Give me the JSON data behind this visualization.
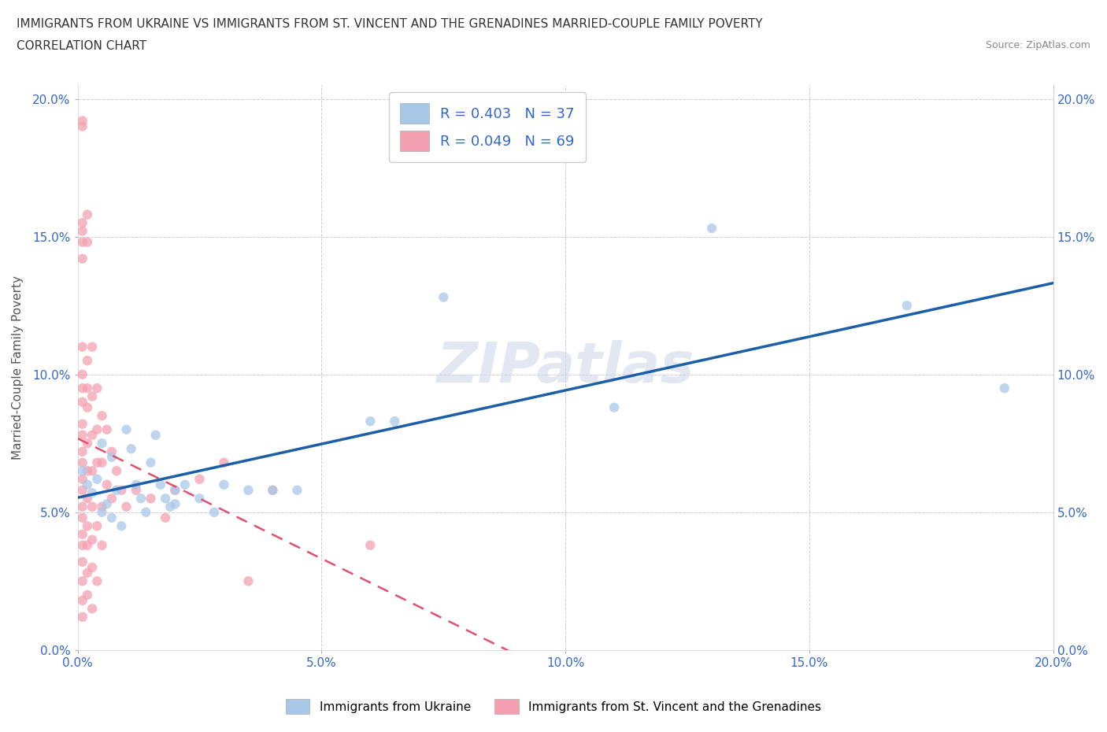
{
  "title_line1": "IMMIGRANTS FROM UKRAINE VS IMMIGRANTS FROM ST. VINCENT AND THE GRENADINES MARRIED-COUPLE FAMILY POVERTY",
  "title_line2": "CORRELATION CHART",
  "source_text": "Source: ZipAtlas.com",
  "ylabel": "Married-Couple Family Poverty",
  "xmin": 0.0,
  "xmax": 0.2,
  "ymin": 0.0,
  "ymax": 0.205,
  "ukraine_R": 0.403,
  "ukraine_N": 37,
  "svg_R": 0.049,
  "svg_N": 69,
  "ukraine_color": "#a8c8e8",
  "svg_color": "#f4a0b0",
  "ukraine_scatter": [
    [
      0.001,
      0.065
    ],
    [
      0.002,
      0.06
    ],
    [
      0.003,
      0.057
    ],
    [
      0.004,
      0.062
    ],
    [
      0.005,
      0.05
    ],
    [
      0.005,
      0.075
    ],
    [
      0.006,
      0.053
    ],
    [
      0.007,
      0.048
    ],
    [
      0.007,
      0.07
    ],
    [
      0.008,
      0.058
    ],
    [
      0.009,
      0.045
    ],
    [
      0.01,
      0.08
    ],
    [
      0.011,
      0.073
    ],
    [
      0.012,
      0.06
    ],
    [
      0.013,
      0.055
    ],
    [
      0.014,
      0.05
    ],
    [
      0.015,
      0.068
    ],
    [
      0.016,
      0.078
    ],
    [
      0.017,
      0.06
    ],
    [
      0.018,
      0.055
    ],
    [
      0.019,
      0.052
    ],
    [
      0.02,
      0.058
    ],
    [
      0.02,
      0.053
    ],
    [
      0.022,
      0.06
    ],
    [
      0.025,
      0.055
    ],
    [
      0.028,
      0.05
    ],
    [
      0.03,
      0.06
    ],
    [
      0.035,
      0.058
    ],
    [
      0.04,
      0.058
    ],
    [
      0.045,
      0.058
    ],
    [
      0.06,
      0.083
    ],
    [
      0.065,
      0.083
    ],
    [
      0.075,
      0.128
    ],
    [
      0.11,
      0.088
    ],
    [
      0.13,
      0.153
    ],
    [
      0.17,
      0.125
    ],
    [
      0.19,
      0.095
    ]
  ],
  "svg_scatter": [
    [
      0.001,
      0.192
    ],
    [
      0.001,
      0.19
    ],
    [
      0.001,
      0.155
    ],
    [
      0.001,
      0.148
    ],
    [
      0.001,
      0.152
    ],
    [
      0.001,
      0.142
    ],
    [
      0.001,
      0.11
    ],
    [
      0.001,
      0.1
    ],
    [
      0.001,
      0.095
    ],
    [
      0.001,
      0.09
    ],
    [
      0.001,
      0.082
    ],
    [
      0.001,
      0.078
    ],
    [
      0.001,
      0.072
    ],
    [
      0.001,
      0.068
    ],
    [
      0.001,
      0.062
    ],
    [
      0.001,
      0.058
    ],
    [
      0.001,
      0.052
    ],
    [
      0.001,
      0.048
    ],
    [
      0.001,
      0.042
    ],
    [
      0.001,
      0.038
    ],
    [
      0.001,
      0.032
    ],
    [
      0.001,
      0.025
    ],
    [
      0.001,
      0.018
    ],
    [
      0.001,
      0.012
    ],
    [
      0.002,
      0.158
    ],
    [
      0.002,
      0.148
    ],
    [
      0.002,
      0.105
    ],
    [
      0.002,
      0.095
    ],
    [
      0.002,
      0.088
    ],
    [
      0.002,
      0.075
    ],
    [
      0.002,
      0.065
    ],
    [
      0.002,
      0.055
    ],
    [
      0.002,
      0.045
    ],
    [
      0.002,
      0.038
    ],
    [
      0.002,
      0.028
    ],
    [
      0.002,
      0.02
    ],
    [
      0.003,
      0.11
    ],
    [
      0.003,
      0.092
    ],
    [
      0.003,
      0.078
    ],
    [
      0.003,
      0.065
    ],
    [
      0.003,
      0.052
    ],
    [
      0.003,
      0.04
    ],
    [
      0.003,
      0.03
    ],
    [
      0.003,
      0.015
    ],
    [
      0.004,
      0.095
    ],
    [
      0.004,
      0.08
    ],
    [
      0.004,
      0.068
    ],
    [
      0.004,
      0.045
    ],
    [
      0.004,
      0.025
    ],
    [
      0.005,
      0.085
    ],
    [
      0.005,
      0.068
    ],
    [
      0.005,
      0.052
    ],
    [
      0.005,
      0.038
    ],
    [
      0.006,
      0.08
    ],
    [
      0.006,
      0.06
    ],
    [
      0.007,
      0.072
    ],
    [
      0.007,
      0.055
    ],
    [
      0.008,
      0.065
    ],
    [
      0.009,
      0.058
    ],
    [
      0.01,
      0.052
    ],
    [
      0.012,
      0.058
    ],
    [
      0.015,
      0.055
    ],
    [
      0.018,
      0.048
    ],
    [
      0.02,
      0.058
    ],
    [
      0.025,
      0.062
    ],
    [
      0.03,
      0.068
    ],
    [
      0.035,
      0.025
    ],
    [
      0.04,
      0.058
    ],
    [
      0.06,
      0.038
    ]
  ],
  "ukraine_trendline_color": "#1a5fa8",
  "svg_trendline_color": "#e05070",
  "watermark_text": "ZIPatlas",
  "legend_label_ukraine": "Immigrants from Ukraine",
  "legend_label_svg": "Immigrants from St. Vincent and the Grenadines",
  "background_color": "#ffffff",
  "grid_color": "#cccccc"
}
